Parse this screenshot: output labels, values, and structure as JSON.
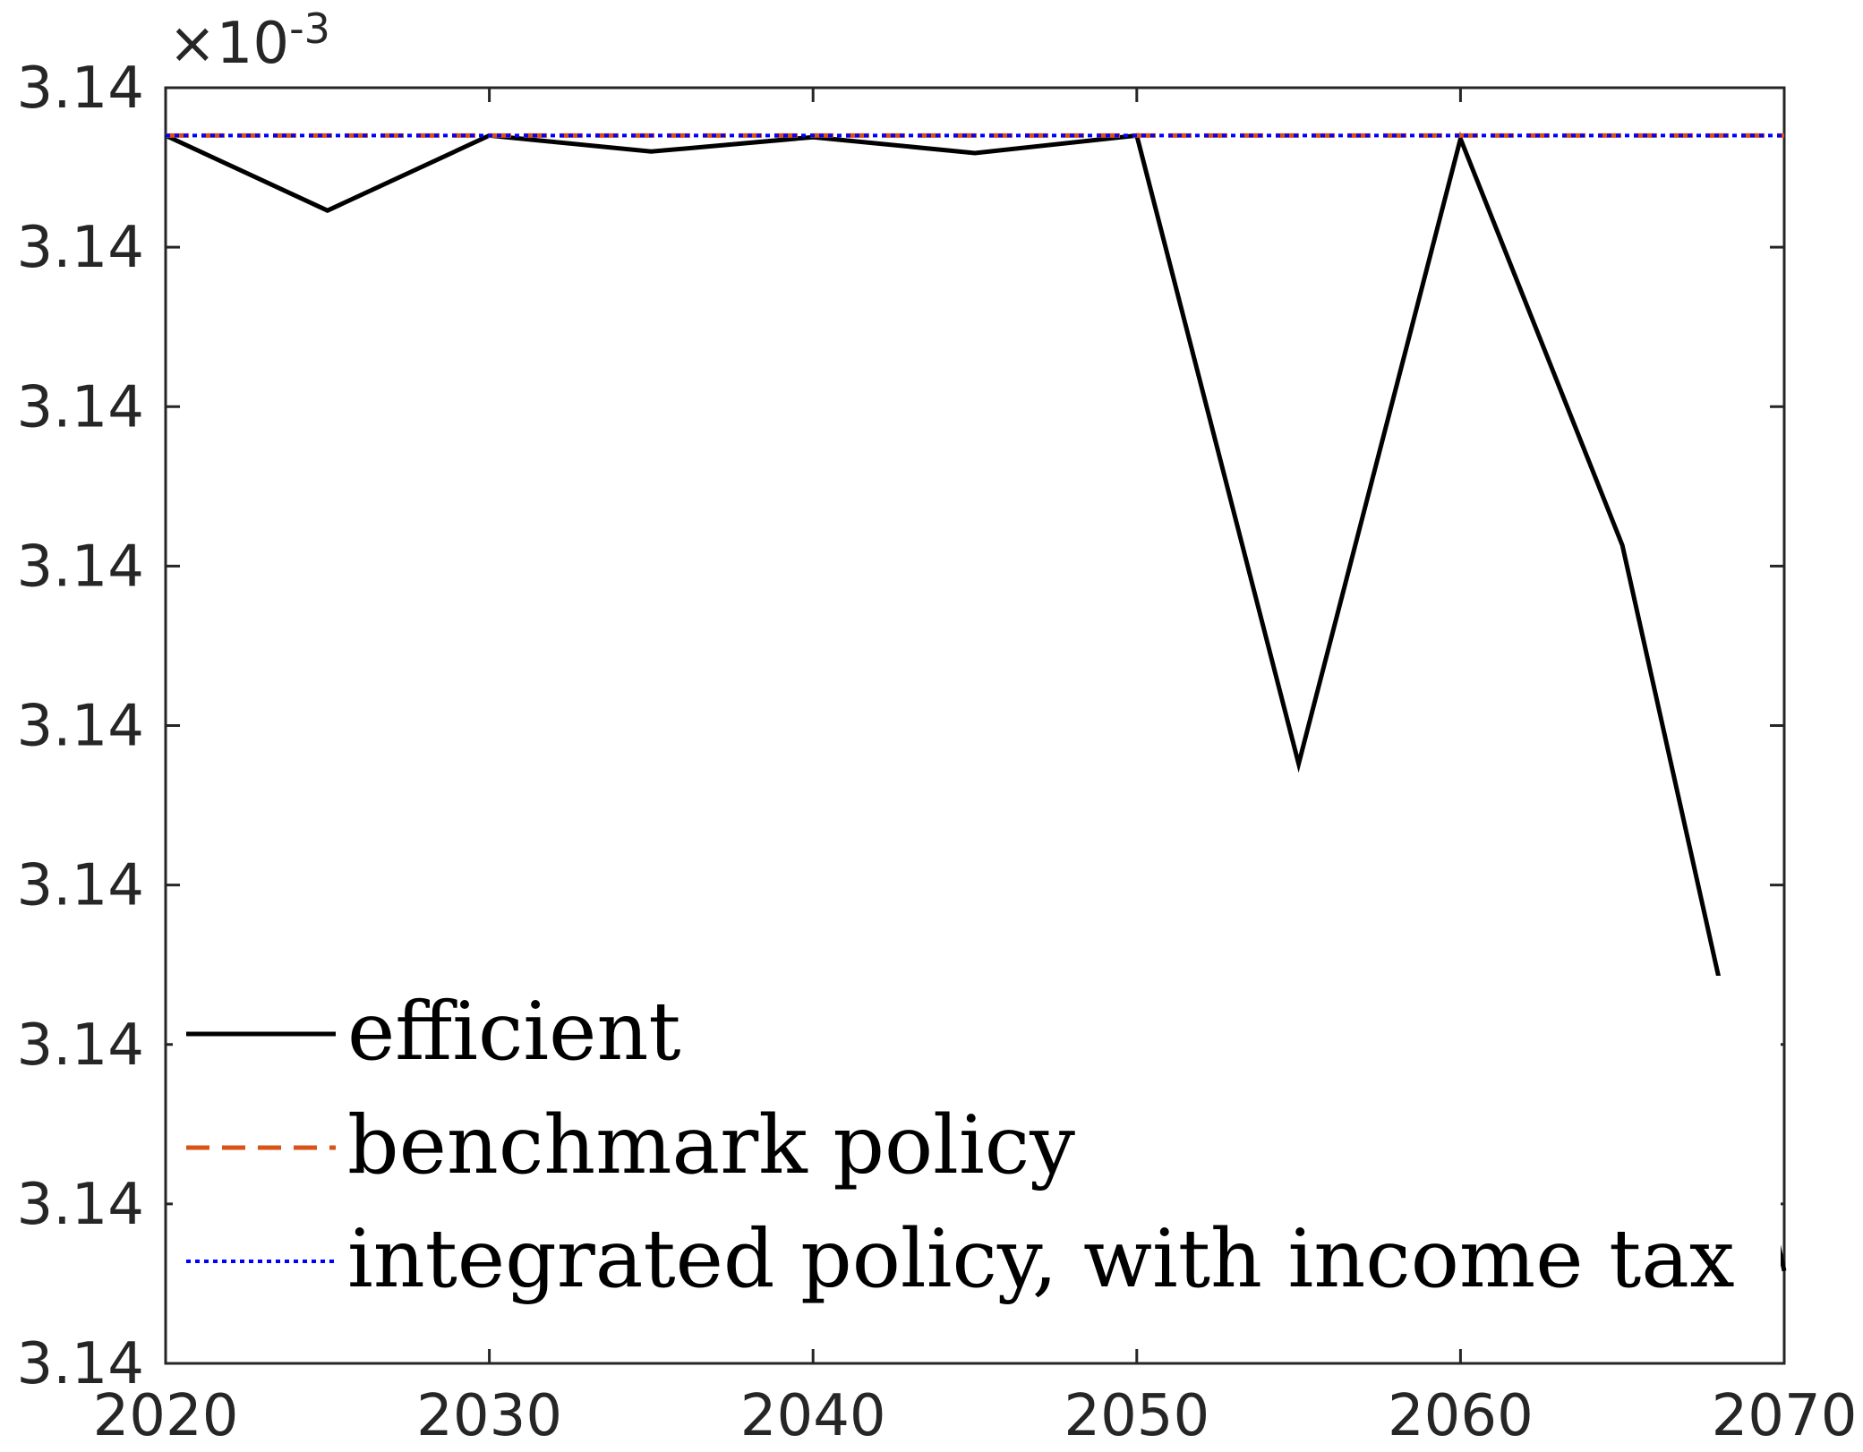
{
  "chart_data": {
    "type": "line",
    "title": "",
    "xlabel": "",
    "ylabel": "",
    "y_exponent": {
      "base": "×10",
      "power": "-3"
    },
    "x_ticks": [
      "2020",
      "2030",
      "2040",
      "2050",
      "2060",
      "2070"
    ],
    "y_ticks": [
      "3.14",
      "3.14",
      "3.14",
      "3.14",
      "3.14",
      "3.14",
      "3.14",
      "3.14",
      "3.14"
    ],
    "xlim": [
      2020,
      2070
    ],
    "ylim": [
      0,
      8
    ],
    "grid": false,
    "legend_position": "bottom-left",
    "series": [
      {
        "name": "efficient",
        "color": "#000000",
        "style": "solid",
        "x": [
          2020,
          2025,
          2030,
          2035,
          2040,
          2045,
          2050,
          2055,
          2060,
          2065,
          2070
        ],
        "y": [
          7.7,
          7.23,
          7.7,
          7.6,
          7.69,
          7.59,
          7.7,
          3.76,
          7.68,
          5.13,
          0.58
        ]
      },
      {
        "name": "benchmark policy",
        "color": "#D95319",
        "style": "dashed",
        "x": [
          2020,
          2070
        ],
        "y": [
          7.7,
          7.7
        ]
      },
      {
        "name": "integrated policy, with income tax",
        "color": "#0000FF",
        "style": "dotted",
        "x": [
          2020,
          2070
        ],
        "y": [
          7.7,
          7.7
        ]
      }
    ]
  }
}
